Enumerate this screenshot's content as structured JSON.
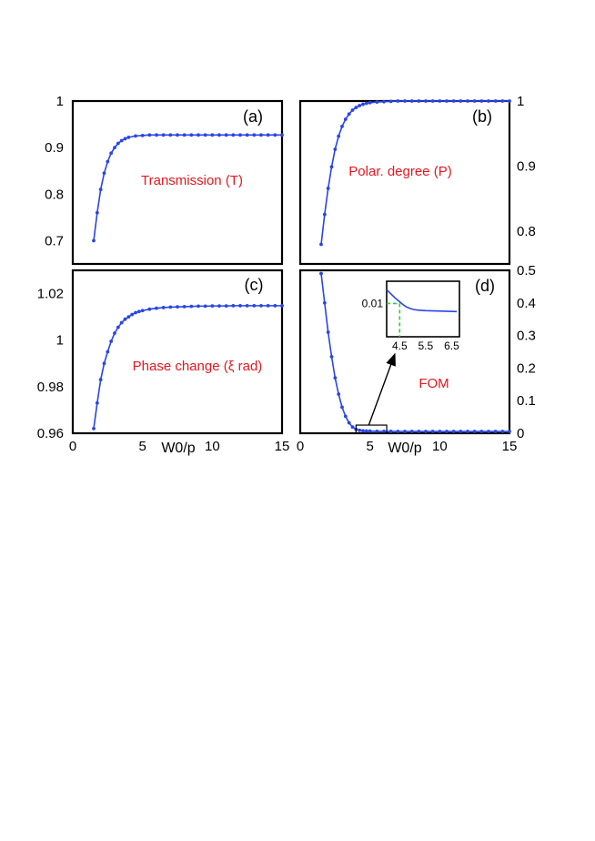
{
  "chart_data": [
    {
      "panel": "a",
      "type": "line",
      "label": "(a)",
      "annotation": "Transmission (T)",
      "xlim": [
        0,
        15
      ],
      "ylim": [
        0.65,
        1.0
      ],
      "x_ticks": [],
      "y_ticks": [
        0.7,
        0.8,
        0.9,
        1
      ],
      "y_tick_labels": [
        "0.7",
        "0.8",
        "0.9",
        "1"
      ],
      "y_axis_side": "left",
      "xlabel": "",
      "series": [
        {
          "x": [
            1.5,
            1.75,
            2,
            2.25,
            2.5,
            2.75,
            3,
            3.25,
            3.5,
            3.75,
            4,
            4.5,
            5,
            5.5,
            6,
            6.5,
            7,
            7.5,
            8,
            8.5,
            9,
            9.5,
            10,
            10.5,
            11,
            11.5,
            12,
            12.5,
            13,
            13.5,
            14,
            14.5,
            15
          ],
          "y": [
            0.7,
            0.76,
            0.81,
            0.845,
            0.87,
            0.888,
            0.9,
            0.909,
            0.915,
            0.919,
            0.922,
            0.925,
            0.926,
            0.927,
            0.927,
            0.927,
            0.927,
            0.927,
            0.927,
            0.927,
            0.927,
            0.927,
            0.927,
            0.927,
            0.927,
            0.927,
            0.927,
            0.927,
            0.927,
            0.927,
            0.927,
            0.927,
            0.927
          ]
        }
      ]
    },
    {
      "panel": "b",
      "type": "line",
      "label": "(b)",
      "annotation": "Polar. degree (P)",
      "xlim": [
        0,
        15
      ],
      "ylim": [
        0.75,
        1.0
      ],
      "x_ticks": [],
      "y_ticks": [
        0.8,
        0.9,
        1
      ],
      "y_tick_labels": [
        "0.8",
        "0.9",
        "1"
      ],
      "y_axis_side": "right",
      "xlabel": "",
      "series": [
        {
          "x": [
            1.5,
            1.75,
            2,
            2.25,
            2.5,
            2.75,
            3,
            3.25,
            3.5,
            3.75,
            4,
            4.25,
            4.5,
            4.75,
            5,
            5.5,
            6,
            6.5,
            7,
            7.5,
            8,
            8.5,
            9,
            9.5,
            10,
            10.5,
            11,
            11.5,
            12,
            12.5,
            13,
            13.5,
            14,
            14.5,
            15
          ],
          "y": [
            0.78,
            0.826,
            0.866,
            0.899,
            0.926,
            0.946,
            0.961,
            0.972,
            0.98,
            0.986,
            0.99,
            0.993,
            0.995,
            0.9965,
            0.9975,
            0.9985,
            0.999,
            0.9995,
            1,
            1,
            1,
            1,
            1,
            1,
            1,
            1,
            1,
            1,
            1,
            1,
            1,
            1,
            1,
            1,
            1
          ]
        }
      ]
    },
    {
      "panel": "c",
      "type": "line",
      "label": "(c)",
      "annotation": "Phase change (ξ rad)",
      "xlim": [
        0,
        15
      ],
      "ylim": [
        0.96,
        1.03
      ],
      "x_ticks": [
        0,
        5,
        10,
        15
      ],
      "x_tick_labels": [
        "0",
        "5",
        "10",
        "15"
      ],
      "y_ticks": [
        0.96,
        0.98,
        1,
        1.02
      ],
      "y_tick_labels": [
        "0.96",
        "0.98",
        "1",
        "1.02"
      ],
      "y_axis_side": "left",
      "xlabel": "W0/p",
      "series": [
        {
          "x": [
            1.5,
            1.75,
            2,
            2.25,
            2.5,
            2.75,
            3,
            3.25,
            3.5,
            3.75,
            4,
            4.25,
            4.5,
            4.75,
            5,
            5.5,
            6,
            6.5,
            7,
            7.5,
            8,
            8.5,
            9,
            9.5,
            10,
            10.5,
            11,
            11.5,
            12,
            12.5,
            13,
            13.5,
            14,
            14.5,
            15
          ],
          "y": [
            0.962,
            0.973,
            0.983,
            0.99,
            0.995,
            0.9995,
            1.003,
            1.0055,
            1.0075,
            1.009,
            1.01,
            1.011,
            1.0118,
            1.0123,
            1.0127,
            1.0133,
            1.0137,
            1.014,
            1.0142,
            1.0143,
            1.0144,
            1.0145,
            1.0146,
            1.0146,
            1.0147,
            1.0147,
            1.0147,
            1.0148,
            1.0148,
            1.0148,
            1.0148,
            1.0148,
            1.0148,
            1.0148,
            1.0148
          ]
        }
      ]
    },
    {
      "panel": "d",
      "type": "line",
      "label": "(d)",
      "annotation": "FOM",
      "xlim": [
        0,
        15
      ],
      "ylim": [
        0,
        0.5
      ],
      "x_ticks": [
        0,
        5,
        10,
        15
      ],
      "x_tick_labels": [
        "0",
        "5",
        "10",
        "15"
      ],
      "y_ticks": [
        0,
        0.1,
        0.2,
        0.3,
        0.4,
        0.5
      ],
      "y_tick_labels": [
        "0",
        "0.1",
        "0.2",
        "0.3",
        "0.4",
        "0.5"
      ],
      "y_axis_side": "right",
      "xlabel": "W0/p",
      "series": [
        {
          "x": [
            1.5,
            1.75,
            2,
            2.25,
            2.5,
            2.75,
            3,
            3.25,
            3.5,
            3.75,
            4,
            4.25,
            4.5,
            4.75,
            5,
            5.5,
            6,
            6.5,
            7,
            7.5,
            8,
            8.5,
            9,
            9.5,
            10,
            10.5,
            11,
            11.5,
            12,
            12.5,
            13,
            13.5,
            14,
            14.5,
            15
          ],
          "y": [
            0.49,
            0.4,
            0.31,
            0.235,
            0.17,
            0.12,
            0.08,
            0.052,
            0.032,
            0.019,
            0.012,
            0.009,
            0.0075,
            0.0068,
            0.0064,
            0.006,
            0.0058,
            0.0057,
            0.0056,
            0.0056,
            0.0055,
            0.0055,
            0.0055,
            0.0055,
            0.0055,
            0.0055,
            0.0055,
            0.0055,
            0.0055,
            0.0055,
            0.0055,
            0.0055,
            0.0055,
            0.0055,
            0.0055
          ]
        }
      ],
      "zoom_box_x": [
        4,
        6.2
      ],
      "zoom_box_y": [
        0,
        0.025
      ],
      "inset": {
        "xlim": [
          4,
          6.8
        ],
        "ylim": [
          0.004,
          0.014
        ],
        "x_ticks": [
          4.5,
          5.5,
          6.5
        ],
        "x_tick_labels": [
          "4.5",
          "5.5",
          "6.5"
        ],
        "y_ticks": [
          0.01
        ],
        "y_tick_labels": [
          "0.01"
        ],
        "marker_x": 4.5,
        "marker_y": 0.01,
        "x": [
          4,
          4.15,
          4.3,
          4.45,
          4.6,
          4.75,
          4.9,
          5.05,
          5.2,
          5.35,
          5.5,
          5.65,
          5.8,
          5.95,
          6.1,
          6.25,
          6.4,
          6.55,
          6.7
        ],
        "y": [
          0.0125,
          0.0118,
          0.0111,
          0.0105,
          0.0099,
          0.0094,
          0.0091,
          0.0089,
          0.0088,
          0.00875,
          0.0087,
          0.00868,
          0.00866,
          0.00864,
          0.00862,
          0.0086,
          0.00858,
          0.00856,
          0.00854
        ]
      }
    }
  ],
  "colors": {
    "curve": "#2a45e6",
    "annotation": "#e8171e",
    "inset_marker": "#2ecc40"
  }
}
